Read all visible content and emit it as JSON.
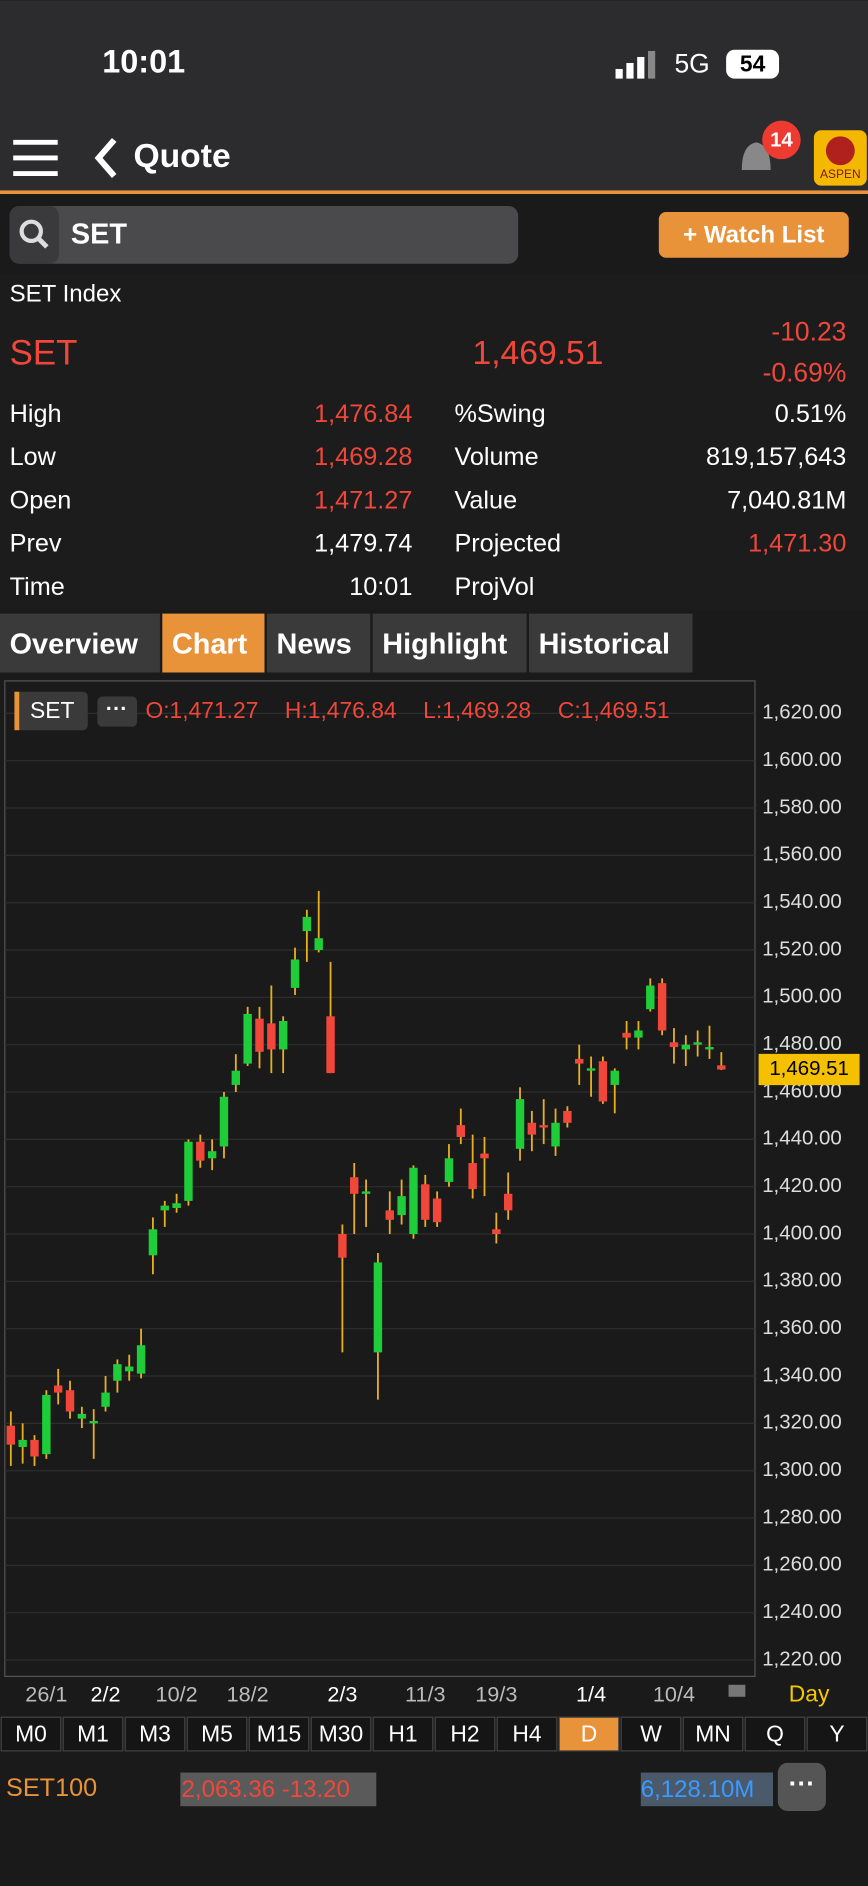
{
  "status": {
    "time": "10:01",
    "network": "5G",
    "battery": "54"
  },
  "header": {
    "title": "Quote",
    "badge": "14",
    "logo": "ASPEN"
  },
  "search": {
    "query": "SET",
    "button": "+ Watch List"
  },
  "quote": {
    "name": "SET Index",
    "symbol": "SET",
    "last": "1,469.51",
    "change": "-10.23",
    "change_pct": "-0.69%",
    "rows": [
      [
        "High",
        "1,476.84",
        "%Swing",
        "0.51%"
      ],
      [
        "Low",
        "1,469.28",
        "Volume",
        "819,157,643"
      ],
      [
        "Open",
        "1,471.27",
        "Value",
        "7,040.81M"
      ],
      [
        "Prev",
        "1,479.74",
        "Projected",
        "1,471.30"
      ],
      [
        "Time",
        "10:01",
        "ProjVol"
      ]
    ]
  },
  "tabs": [
    "Overview",
    "Chart",
    "News",
    "Highlight",
    "Historical"
  ],
  "chart_data": {
    "type": "candlestick",
    "symbol": "SET",
    "ohlc_label": [
      "O:1,471.27",
      "H:1,476.84",
      "L:1,469.28",
      "C:1,469.51"
    ],
    "up_color": "#1fcc3a",
    "down_color": "#f0473a",
    "wick_color": "#e8b020",
    "categories": [
      null,
      null,
      null,
      "26/1",
      null,
      null,
      null,
      null,
      "2/2",
      null,
      null,
      null,
      null,
      null,
      "10/2",
      null,
      null,
      null,
      null,
      null,
      "18/2",
      null,
      null,
      null,
      null,
      null,
      null,
      null,
      "2/3",
      null,
      null,
      null,
      null,
      null,
      null,
      "11/3",
      null,
      null,
      null,
      null,
      null,
      "19/3",
      null,
      null,
      null,
      null,
      null,
      null,
      null,
      "1/4",
      null,
      null,
      null,
      null,
      null,
      null,
      "10/4",
      null,
      null,
      null,
      null
    ],
    "open": [
      1319,
      1310,
      1313,
      1307,
      1336,
      1334,
      1322,
      1320,
      1327,
      1338,
      1342,
      1341,
      1391,
      1410,
      1411,
      1414,
      1439,
      1432,
      1437,
      1463,
      1472,
      1491,
      1489,
      1478,
      1504,
      1528,
      1520,
      1492,
      1400,
      1424,
      1417,
      1350,
      1410,
      1408,
      1400,
      1421,
      1415,
      1422,
      1446,
      1430,
      1434,
      1402,
      1417,
      1436,
      1447,
      1446,
      1437,
      1452,
      1474,
      1469,
      1473,
      1463,
      1485,
      1483,
      1495,
      1506,
      1481,
      1478,
      1480,
      1478,
      1471.27
    ],
    "high": [
      1325,
      1320,
      1315,
      1334,
      1343,
      1338,
      1327,
      1326,
      1340,
      1347,
      1349,
      1360,
      1407,
      1414,
      1417,
      1440,
      1442,
      1440,
      1460,
      1476,
      1496,
      1496,
      1505,
      1492,
      1521,
      1537,
      1545,
      1515,
      1404,
      1430,
      1423,
      1392,
      1418,
      1423,
      1429,
      1425,
      1418,
      1438,
      1453,
      1442,
      1441,
      1409,
      1426,
      1462,
      1452,
      1457,
      1453,
      1454,
      1480,
      1475,
      1475,
      1470,
      1490,
      1490,
      1508,
      1508,
      1487,
      1484,
      1486,
      1488,
      1476.84
    ],
    "low": [
      1302,
      1303,
      1302,
      1305,
      1328,
      1322,
      1318,
      1305,
      1325,
      1333,
      1338,
      1339,
      1383,
      1403,
      1409,
      1412,
      1428,
      1427,
      1432,
      1460,
      1471,
      1470,
      1468,
      1468,
      1501,
      1515,
      1519,
      1468,
      1350,
      1400,
      1403,
      1330,
      1400,
      1404,
      1398,
      1403,
      1403,
      1420,
      1438,
      1415,
      1416,
      1396,
      1406,
      1431,
      1435,
      1438,
      1433,
      1445,
      1463,
      1458,
      1455,
      1451,
      1478,
      1478,
      1494,
      1484,
      1472,
      1471,
      1475,
      1474,
      1469.28
    ],
    "close": [
      1311,
      1313,
      1306,
      1332,
      1333,
      1325,
      1324,
      1321,
      1333,
      1345,
      1344,
      1353,
      1402,
      1412,
      1413,
      1439,
      1431,
      1435,
      1458,
      1469,
      1493,
      1477,
      1478,
      1490,
      1516,
      1534,
      1525,
      1468,
      1390,
      1417,
      1418,
      1388,
      1406,
      1416,
      1428,
      1406,
      1405,
      1432,
      1441,
      1419,
      1432,
      1400,
      1410,
      1457,
      1442,
      1445,
      1447,
      1447,
      1472,
      1470,
      1456,
      1469,
      1483,
      1486,
      1505,
      1486,
      1479,
      1480,
      1481,
      1479,
      1469.51
    ],
    "ylim": [
      1213.6,
      1633.2
    ],
    "yticks": [
      {
        "value": 1220,
        "label": "1,220.00"
      },
      {
        "value": 1240,
        "label": "1,240.00"
      },
      {
        "value": 1260,
        "label": "1,260.00"
      },
      {
        "value": 1280,
        "label": "1,280.00"
      },
      {
        "value": 1300,
        "label": "1,300.00"
      },
      {
        "value": 1320,
        "label": "1,320.00"
      },
      {
        "value": 1340,
        "label": "1,340.00"
      },
      {
        "value": 1360,
        "label": "1,360.00"
      },
      {
        "value": 1380,
        "label": "1,380.00"
      },
      {
        "value": 1400,
        "label": "1,400.00"
      },
      {
        "value": 1420,
        "label": "1,420.00"
      },
      {
        "value": 1440,
        "label": "1,440.00"
      },
      {
        "value": 1460,
        "label": "1,460.00"
      },
      {
        "value": 1480,
        "label": "1,480.00"
      },
      {
        "value": 1500,
        "label": "1,500.00"
      },
      {
        "value": 1520,
        "label": "1,520.00"
      },
      {
        "value": 1540,
        "label": "1,540.00"
      },
      {
        "value": 1560,
        "label": "1,560.00"
      },
      {
        "value": 1580,
        "label": "1,580.00"
      },
      {
        "value": 1600,
        "label": "1,600.00"
      },
      {
        "value": 1620,
        "label": "1,620.00"
      }
    ],
    "grid": true,
    "price_line": {
      "value": 1469.51,
      "label": "1,469.51"
    },
    "period": "Day"
  },
  "timeframes": [
    "M0",
    "M1",
    "M3",
    "M5",
    "M15",
    "M30",
    "H1",
    "H2",
    "H4",
    "D",
    "W",
    "MN",
    "Q",
    "Y"
  ],
  "footer": {
    "symbol": "SET100",
    "index": "2,063.36 -13.20",
    "value": "6,128.10M"
  }
}
